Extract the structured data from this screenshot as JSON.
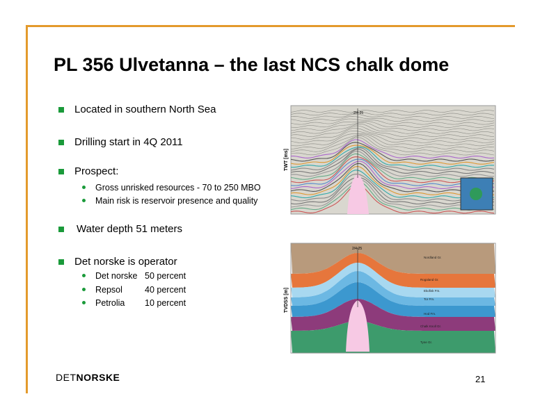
{
  "title": "PL 356 Ulvetanna – the last NCS chalk dome",
  "bullets": [
    {
      "text": "Located in southern North Sea"
    },
    {
      "text": "Drilling start in 4Q 2011"
    },
    {
      "text": "Prospect:",
      "sub": [
        "Gross unrisked resources - 70 to 250 MBO",
        "Main risk is reservoir presence and quality"
      ]
    },
    {
      "text": "Water depth 51 meters"
    },
    {
      "text": "Det norske is operator",
      "partners": [
        {
          "name": "Det norske",
          "share": "50 percent"
        },
        {
          "name": "Repsol",
          "share": "40 percent"
        },
        {
          "name": "Petrolia",
          "share": "10 percent"
        }
      ]
    }
  ],
  "figures": [
    {
      "well": "2/4-25",
      "axis_label": "TWT [ms]"
    },
    {
      "well": "2/4-25",
      "axis_label": "TVDSS [m]",
      "layers": [
        "Nordland Gr.",
        "Rogaland Gr.",
        "Ekofisk Fm.",
        "Tor Fm.",
        "Hod Fm.",
        "Chalk Knoll Gr.",
        "Tyne Gr."
      ]
    }
  ],
  "footer": {
    "logo_prefix": "DET",
    "logo_main": "NORSKE",
    "page_number": "21"
  }
}
